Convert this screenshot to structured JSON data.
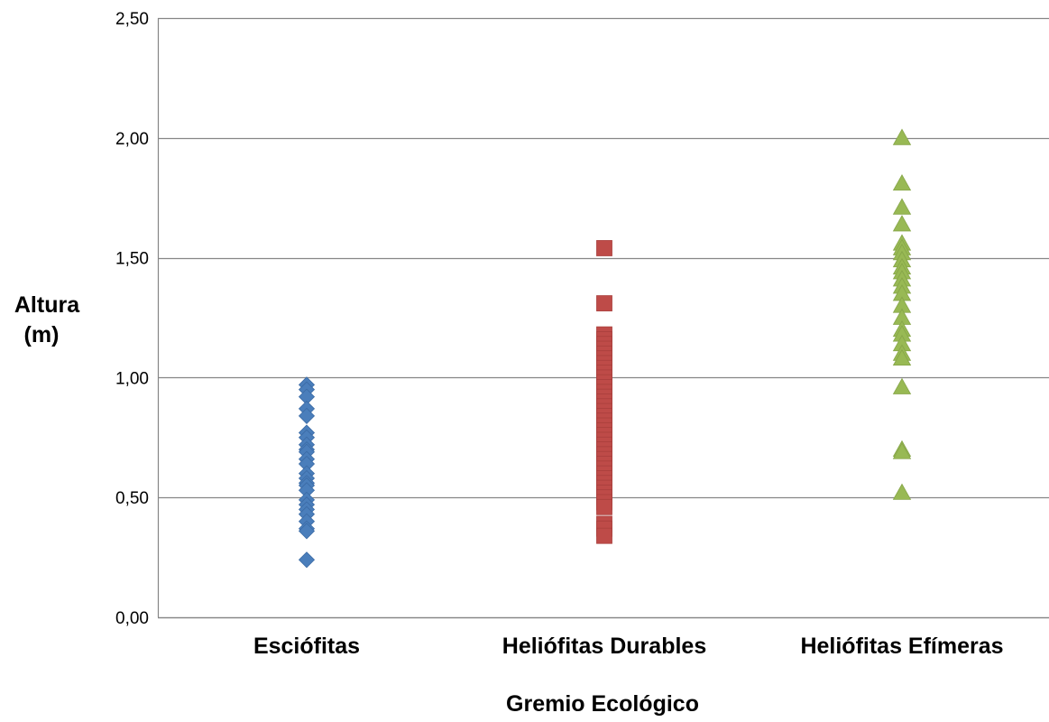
{
  "chart_data": {
    "type": "scatter",
    "title": "",
    "xlabel": "Gremio Ecológico",
    "ylabel": "Altura (m)",
    "ylabel_lines": [
      "Altura",
      "(m)"
    ],
    "categories": [
      "Esciófitas",
      "Heliófitas Durables",
      "Heliófitas Efímeras"
    ],
    "ylim": [
      0,
      2.5
    ],
    "yticks": [
      0,
      0.5,
      1.0,
      1.5,
      2.0,
      2.5
    ],
    "ytick_labels": [
      "0,00",
      "0,50",
      "1,00",
      "1,50",
      "2,00",
      "2,50"
    ],
    "grid": true,
    "legend": "none",
    "series": [
      {
        "category": "Esciófitas",
        "marker": "diamond",
        "color": "#4a7ebb",
        "values": [
          0.97,
          0.95,
          0.92,
          0.87,
          0.84,
          0.77,
          0.75,
          0.72,
          0.7,
          0.69,
          0.66,
          0.64,
          0.6,
          0.58,
          0.56,
          0.55,
          0.53,
          0.49,
          0.47,
          0.45,
          0.43,
          0.4,
          0.37,
          0.36,
          0.24
        ]
      },
      {
        "category": "Heliófitas Durables",
        "marker": "square",
        "color": "#be4b48",
        "values": [
          1.54,
          1.31,
          1.18,
          1.16,
          1.14,
          1.12,
          1.1,
          1.08,
          1.06,
          1.04,
          1.02,
          1.0,
          0.98,
          0.96,
          0.94,
          0.92,
          0.9,
          0.88,
          0.86,
          0.84,
          0.82,
          0.8,
          0.78,
          0.76,
          0.74,
          0.72,
          0.7,
          0.68,
          0.66,
          0.64,
          0.62,
          0.6,
          0.58,
          0.56,
          0.54,
          0.52,
          0.5,
          0.48,
          0.46,
          0.39,
          0.37,
          0.34
        ]
      },
      {
        "category": "Heliófitas Efímeras",
        "marker": "triangle",
        "color": "#98b954",
        "values": [
          2.0,
          1.81,
          1.71,
          1.64,
          1.56,
          1.54,
          1.52,
          1.49,
          1.46,
          1.44,
          1.41,
          1.38,
          1.35,
          1.3,
          1.25,
          1.2,
          1.18,
          1.14,
          1.1,
          1.08,
          0.96,
          0.7,
          0.69,
          0.52
        ]
      }
    ]
  }
}
